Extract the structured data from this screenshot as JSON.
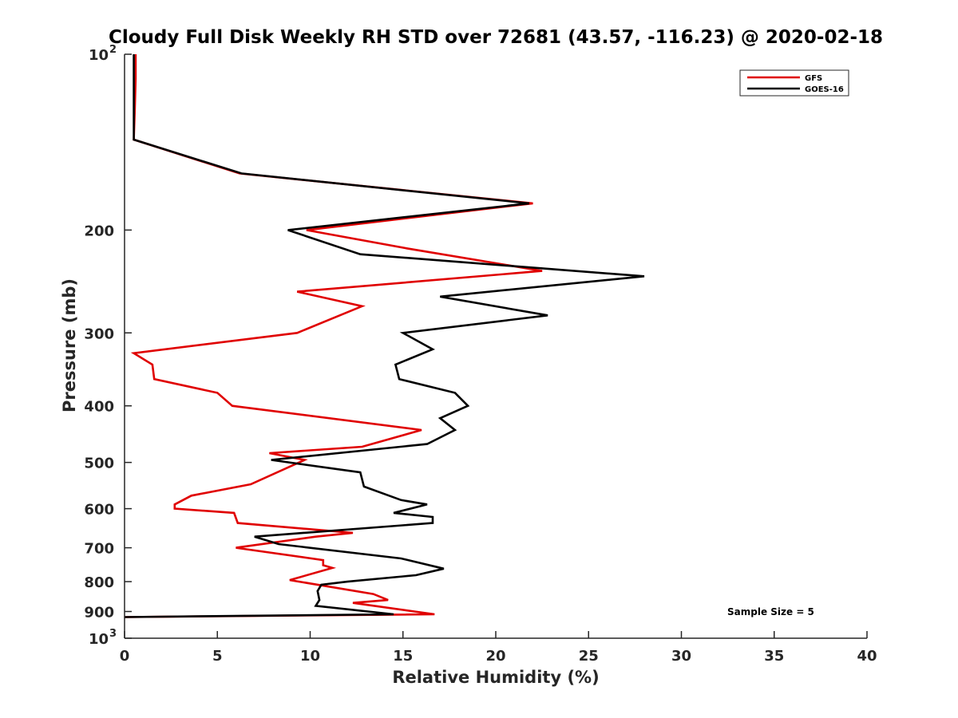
{
  "chart_data": {
    "type": "line",
    "title": "Cloudy Full Disk Weekly RH STD over 72681 (43.57, -116.23) @ 2020-02-18",
    "xlabel": "Relative Humidity (%)",
    "ylabel": "Pressure (mb)",
    "xlim": [
      0,
      40
    ],
    "ylim": [
      100,
      1000
    ],
    "y_scale": "log",
    "y_reversed": true,
    "x_ticks": [
      "0",
      "5",
      "10",
      "15",
      "20",
      "25",
      "30",
      "35",
      "40"
    ],
    "y_ticks": [
      {
        "value": 100,
        "base": "10",
        "exp": "2"
      },
      {
        "value": 200,
        "label": "200"
      },
      {
        "value": 300,
        "label": "300"
      },
      {
        "value": 400,
        "label": "400"
      },
      {
        "value": 500,
        "label": "500"
      },
      {
        "value": 600,
        "label": "600"
      },
      {
        "value": 700,
        "label": "700"
      },
      {
        "value": 800,
        "label": "800"
      },
      {
        "value": 900,
        "label": "900"
      },
      {
        "value": 1000,
        "base": "10",
        "exp": "3"
      }
    ],
    "legend_position": "top-right",
    "annotation": "Sample Size = 5",
    "series": [
      {
        "name": "GFS",
        "color": "#e00000",
        "points": [
          [
            0.6,
            100
          ],
          [
            0.6,
            110
          ],
          [
            0.55,
            125
          ],
          [
            0.5,
            140
          ],
          [
            6.2,
            160
          ],
          [
            22.0,
            180
          ],
          [
            9.8,
            200
          ],
          [
            15.2,
            215
          ],
          [
            22.5,
            235
          ],
          [
            9.3,
            255
          ],
          [
            12.8,
            270
          ],
          [
            9.3,
            300
          ],
          [
            0.5,
            325
          ],
          [
            1.5,
            340
          ],
          [
            1.6,
            360
          ],
          [
            5.0,
            380
          ],
          [
            5.8,
            400
          ],
          [
            16.0,
            440
          ],
          [
            12.8,
            470
          ],
          [
            7.8,
            482
          ],
          [
            9.7,
            495
          ],
          [
            6.8,
            545
          ],
          [
            3.6,
            570
          ],
          [
            2.7,
            590
          ],
          [
            2.7,
            600
          ],
          [
            5.9,
            610
          ],
          [
            6.1,
            635
          ],
          [
            12.3,
            660
          ],
          [
            10.3,
            670
          ],
          [
            6.0,
            700
          ],
          [
            10.7,
            735
          ],
          [
            10.7,
            750
          ],
          [
            11.2,
            758
          ],
          [
            9.2,
            790
          ],
          [
            8.9,
            795
          ],
          [
            13.4,
            840
          ],
          [
            14.2,
            860
          ],
          [
            12.3,
            870
          ],
          [
            16.7,
            910
          ],
          [
            0.0,
            920
          ]
        ]
      },
      {
        "name": "GOES-16",
        "color": "#000000",
        "points": [
          [
            0.5,
            100
          ],
          [
            0.5,
            110
          ],
          [
            0.5,
            125
          ],
          [
            0.5,
            140
          ],
          [
            6.3,
            160
          ],
          [
            21.8,
            180
          ],
          [
            8.8,
            200
          ],
          [
            12.7,
            220
          ],
          [
            28.0,
            240
          ],
          [
            17.0,
            260
          ],
          [
            22.8,
            280
          ],
          [
            15.0,
            300
          ],
          [
            16.6,
            320
          ],
          [
            14.6,
            340
          ],
          [
            14.8,
            360
          ],
          [
            17.8,
            380
          ],
          [
            18.5,
            400
          ],
          [
            17.0,
            420
          ],
          [
            17.8,
            440
          ],
          [
            16.3,
            465
          ],
          [
            7.9,
            495
          ],
          [
            12.7,
            520
          ],
          [
            12.9,
            550
          ],
          [
            14.9,
            580
          ],
          [
            16.3,
            590
          ],
          [
            14.5,
            610
          ],
          [
            16.6,
            620
          ],
          [
            16.6,
            635
          ],
          [
            7.0,
            670
          ],
          [
            8.3,
            690
          ],
          [
            14.9,
            730
          ],
          [
            17.2,
            760
          ],
          [
            15.7,
            780
          ],
          [
            12.0,
            800
          ],
          [
            10.6,
            810
          ],
          [
            10.4,
            830
          ],
          [
            10.5,
            860
          ],
          [
            10.3,
            880
          ],
          [
            14.5,
            910
          ],
          [
            0.0,
            920
          ]
        ]
      }
    ]
  }
}
